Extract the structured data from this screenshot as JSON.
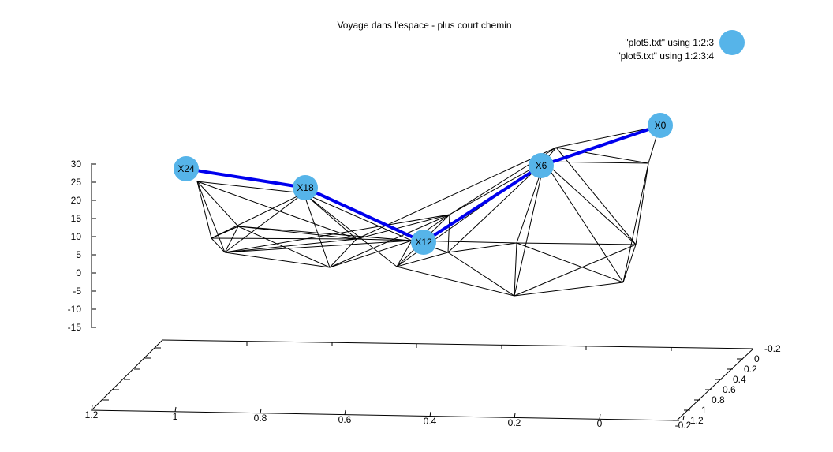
{
  "chart_data": {
    "type": "3d-surface-wireframe",
    "title": "Voyage dans l'espace - plus court chemin",
    "legend": {
      "placement": "top-right",
      "entries": [
        "\"plot5.txt\" using 1:2:3",
        "\"plot5.txt\" using 1:2:3:4"
      ]
    },
    "z_axis": {
      "ticks": [
        "30",
        "25",
        "20",
        "15",
        "10",
        "5",
        "0",
        "-5",
        "-10",
        "-15"
      ]
    },
    "x_axis": {
      "ticks": [
        "1.2",
        "1",
        "0.8",
        "0.6",
        "0.4",
        "0.2",
        "0",
        "-0.2"
      ]
    },
    "y_axis": {
      "ticks": [
        "-0.2",
        "0",
        "0.2",
        "0.4",
        "0.6",
        "0.8",
        "1",
        "1.2"
      ]
    },
    "shortest_path": [
      "X24",
      "X18",
      "X12",
      "X6",
      "X0"
    ],
    "colors": {
      "path": "#0000ee",
      "node": "#56b4e9",
      "mesh": "#000000"
    }
  }
}
